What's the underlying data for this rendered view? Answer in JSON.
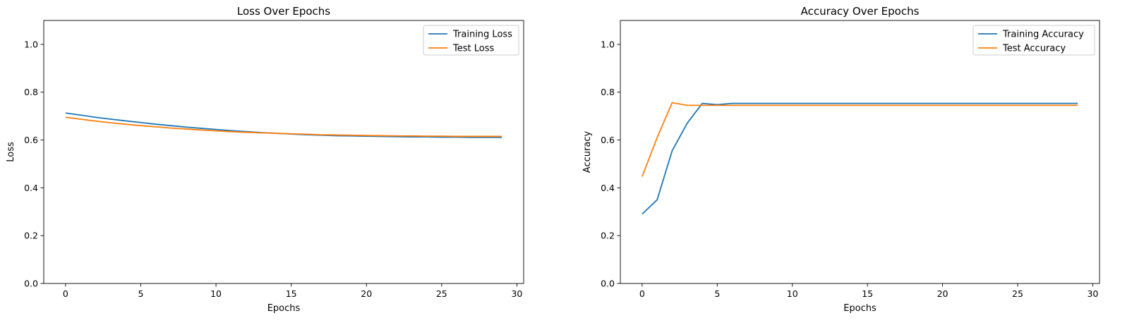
{
  "chart_data": [
    {
      "type": "line",
      "title": "Loss Over Epochs",
      "xlabel": "Epochs",
      "ylabel": "Loss",
      "xlim": [
        -1.45,
        30.45
      ],
      "ylim": [
        0,
        1.1
      ],
      "xticks": [
        0,
        5,
        10,
        15,
        20,
        25,
        30
      ],
      "yticks": [
        0.0,
        0.2,
        0.4,
        0.6,
        0.8,
        1.0
      ],
      "grid": false,
      "legend": "top-right",
      "x": [
        0,
        1,
        2,
        3,
        4,
        5,
        6,
        7,
        8,
        9,
        10,
        11,
        12,
        13,
        14,
        15,
        16,
        17,
        18,
        19,
        20,
        21,
        22,
        23,
        24,
        25,
        26,
        27,
        28,
        29
      ],
      "series": [
        {
          "name": "Training Loss",
          "color": "#1f77b4",
          "values": [
            0.713,
            0.704,
            0.695,
            0.687,
            0.68,
            0.673,
            0.666,
            0.66,
            0.654,
            0.649,
            0.644,
            0.639,
            0.635,
            0.631,
            0.628,
            0.625,
            0.622,
            0.62,
            0.618,
            0.617,
            0.616,
            0.615,
            0.614,
            0.613,
            0.613,
            0.612,
            0.612,
            0.611,
            0.611,
            0.611
          ]
        },
        {
          "name": "Test Loss",
          "color": "#ff7f0e",
          "values": [
            0.695,
            0.687,
            0.679,
            0.672,
            0.666,
            0.66,
            0.655,
            0.65,
            0.646,
            0.642,
            0.638,
            0.635,
            0.632,
            0.63,
            0.628,
            0.626,
            0.624,
            0.622,
            0.621,
            0.62,
            0.619,
            0.618,
            0.617,
            0.617,
            0.616,
            0.616,
            0.615,
            0.615,
            0.615,
            0.615
          ]
        }
      ]
    },
    {
      "type": "line",
      "title": "Accuracy Over Epochs",
      "xlabel": "Epochs",
      "ylabel": "Accuracy",
      "xlim": [
        -1.45,
        30.45
      ],
      "ylim": [
        0,
        1.1
      ],
      "xticks": [
        0,
        5,
        10,
        15,
        20,
        25,
        30
      ],
      "yticks": [
        0.0,
        0.2,
        0.4,
        0.6,
        0.8,
        1.0
      ],
      "grid": false,
      "legend": "top-right",
      "x": [
        0,
        1,
        2,
        3,
        4,
        5,
        6,
        7,
        8,
        9,
        10,
        11,
        12,
        13,
        14,
        15,
        16,
        17,
        18,
        19,
        20,
        21,
        22,
        23,
        24,
        25,
        26,
        27,
        28,
        29
      ],
      "series": [
        {
          "name": "Training Accuracy",
          "color": "#1f77b4",
          "values": [
            0.29,
            0.35,
            0.555,
            0.67,
            0.753,
            0.748,
            0.753,
            0.753,
            0.753,
            0.753,
            0.753,
            0.753,
            0.753,
            0.753,
            0.753,
            0.753,
            0.753,
            0.753,
            0.753,
            0.753,
            0.753,
            0.753,
            0.753,
            0.753,
            0.753,
            0.753,
            0.753,
            0.753,
            0.753,
            0.753
          ]
        },
        {
          "name": "Test Accuracy",
          "color": "#ff7f0e",
          "values": [
            0.447,
            0.61,
            0.756,
            0.745,
            0.745,
            0.745,
            0.745,
            0.745,
            0.745,
            0.745,
            0.745,
            0.745,
            0.745,
            0.745,
            0.745,
            0.745,
            0.745,
            0.745,
            0.745,
            0.745,
            0.745,
            0.745,
            0.745,
            0.745,
            0.745,
            0.745,
            0.745,
            0.745,
            0.745,
            0.745
          ]
        }
      ]
    }
  ]
}
